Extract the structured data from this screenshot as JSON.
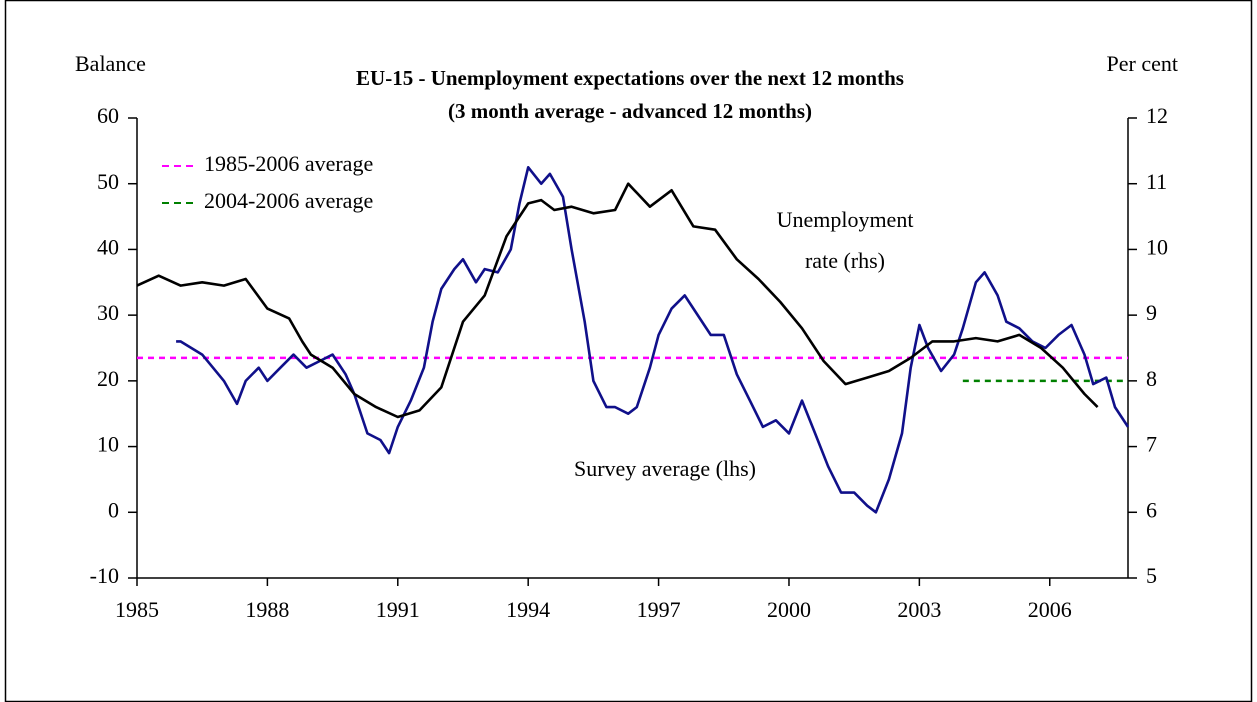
{
  "chart_data": {
    "type": "line",
    "title": "EU-15 - Unemployment expectations over the next 12 months",
    "subtitle": "(3 month average - advanced 12 months)",
    "ylabel": "Balance",
    "y2label": "Per cent",
    "xlim": [
      1985,
      2007.8
    ],
    "xticks": [
      1985,
      1988,
      1991,
      1994,
      1997,
      2000,
      2003,
      2006
    ],
    "ylim": [
      -10,
      60
    ],
    "yticks": [
      -10,
      0,
      10,
      20,
      30,
      40,
      50,
      60
    ],
    "y2lim": [
      5,
      12
    ],
    "y2ticks": [
      5,
      6,
      7,
      8,
      9,
      10,
      11,
      12
    ],
    "series": [
      {
        "color": "#10108a",
        "axis": "y",
        "x": [
          1985.9,
          1986.0,
          1986.5,
          1987.0,
          1987.3,
          1987.5,
          1987.8,
          1988.0,
          1988.3,
          1988.6,
          1988.9,
          1989.2,
          1989.5,
          1989.8,
          1990.0,
          1990.3,
          1990.6,
          1990.8,
          1991.0,
          1991.3,
          1991.6,
          1991.8,
          1992.0,
          1992.3,
          1992.5,
          1992.8,
          1993.0,
          1993.3,
          1993.6,
          1993.8,
          1994.0,
          1994.3,
          1994.5,
          1994.8,
          1995.0,
          1995.3,
          1995.5,
          1995.8,
          1996.0,
          1996.3,
          1996.5,
          1996.8,
          1997.0,
          1997.3,
          1997.6,
          1997.9,
          1998.2,
          1998.5,
          1998.8,
          1999.1,
          1999.4,
          1999.7,
          2000.0,
          2000.3,
          2000.6,
          2000.9,
          2001.2,
          2001.5,
          2001.8,
          2002.0,
          2002.3,
          2002.6,
          2002.8,
          2003.0,
          2003.2,
          2003.5,
          2003.8,
          2004.0,
          2004.3,
          2004.5,
          2004.8,
          2005.0,
          2005.3,
          2005.6,
          2005.9,
          2006.2,
          2006.5,
          2006.8,
          2007.0,
          2007.3,
          2007.5,
          2007.8
        ],
        "values": [
          26,
          26,
          24,
          20,
          16.5,
          20,
          22,
          20,
          22,
          24,
          22,
          23,
          24,
          21,
          18,
          12,
          11,
          9,
          13,
          17,
          22,
          29,
          34,
          37,
          38.5,
          35,
          37,
          36.5,
          40,
          47,
          52.5,
          50,
          51.5,
          48,
          40,
          29,
          20,
          16,
          16,
          15,
          16,
          22,
          27,
          31,
          33,
          30,
          27,
          27,
          21,
          17,
          13,
          14,
          12,
          17,
          12,
          7,
          3,
          3,
          1,
          0,
          5,
          12,
          22,
          28.5,
          25,
          21.5,
          24,
          28,
          35,
          36.5,
          33,
          29,
          28,
          26,
          25,
          27,
          28.5,
          24,
          19.5,
          20.5,
          16,
          13
        ]
      },
      {
        "color": "#000000",
        "axis": "y2",
        "x": [
          1985.0,
          1985.5,
          1986.0,
          1986.5,
          1987.0,
          1987.5,
          1988.0,
          1988.5,
          1988.8,
          1989.0,
          1989.5,
          1990.0,
          1990.5,
          1991.0,
          1991.5,
          1992.0,
          1992.5,
          1993.0,
          1993.5,
          1994.0,
          1994.3,
          1994.6,
          1995.0,
          1995.5,
          1996.0,
          1996.3,
          1996.8,
          1997.3,
          1997.8,
          1998.3,
          1998.8,
          1999.3,
          1999.8,
          2000.3,
          2000.8,
          2001.3,
          2001.8,
          2002.3,
          2002.8,
          2003.3,
          2003.8,
          2004.3,
          2004.8,
          2005.3,
          2005.8,
          2006.3,
          2006.8,
          2007.1
        ],
        "values": [
          9.45,
          9.6,
          9.45,
          9.5,
          9.45,
          9.55,
          9.1,
          8.95,
          8.6,
          8.4,
          8.2,
          7.8,
          7.6,
          7.45,
          7.55,
          7.9,
          8.9,
          9.3,
          10.2,
          10.7,
          10.75,
          10.6,
          10.65,
          10.55,
          10.6,
          11.0,
          10.65,
          10.9,
          10.35,
          10.3,
          9.85,
          9.55,
          9.2,
          8.8,
          8.3,
          7.95,
          8.05,
          8.15,
          8.35,
          8.6,
          8.6,
          8.65,
          8.6,
          8.7,
          8.5,
          8.2,
          7.8,
          7.6
        ]
      }
    ],
    "reference_lines": [
      {
        "name": "1985-2006 average",
        "value": 23.5,
        "color": "#ff00ff",
        "from": 1985,
        "to": 2007.8
      },
      {
        "name": "2004-2006 average",
        "value": 20,
        "color": "#008000",
        "from": 2004,
        "to": 2007.8
      }
    ],
    "annotations": [
      "Unemployment",
      "rate (rhs)",
      "Survey average (lhs)"
    ]
  }
}
